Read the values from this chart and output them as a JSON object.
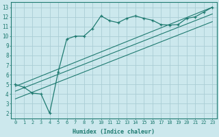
{
  "xlabel": "Humidex (Indice chaleur)",
  "bg_color": "#cce8ed",
  "grid_color": "#aacdd4",
  "line_color": "#1e7a70",
  "xlim": [
    -0.5,
    23.5
  ],
  "ylim": [
    1.5,
    13.5
  ],
  "xticks": [
    0,
    1,
    2,
    3,
    4,
    5,
    6,
    7,
    8,
    9,
    10,
    11,
    12,
    13,
    14,
    15,
    16,
    17,
    18,
    19,
    20,
    21,
    22,
    23
  ],
  "yticks": [
    2,
    3,
    4,
    5,
    6,
    7,
    8,
    9,
    10,
    11,
    12,
    13
  ],
  "main_x": [
    0,
    1,
    2,
    3,
    4,
    5,
    6,
    7,
    8,
    9,
    10,
    11,
    12,
    13,
    14,
    15,
    16,
    17,
    18,
    19,
    20,
    21,
    22,
    23
  ],
  "main_y": [
    5.0,
    4.7,
    4.1,
    4.0,
    2.0,
    6.3,
    9.7,
    10.0,
    10.0,
    10.8,
    12.1,
    11.6,
    11.4,
    11.85,
    12.1,
    11.85,
    11.65,
    11.2,
    11.15,
    11.2,
    11.85,
    12.0,
    12.5,
    13.0
  ],
  "ref_lines": [
    {
      "x": [
        0,
        23
      ],
      "y": [
        4.8,
        13.0
      ]
    },
    {
      "x": [
        0,
        23
      ],
      "y": [
        4.3,
        12.3
      ]
    },
    {
      "x": [
        0,
        23
      ],
      "y": [
        3.5,
        11.5
      ]
    }
  ]
}
